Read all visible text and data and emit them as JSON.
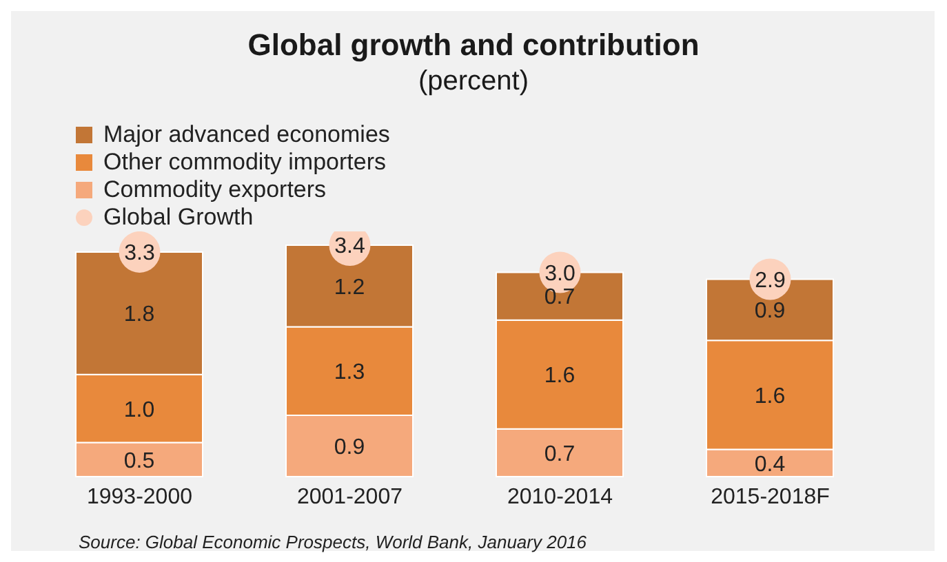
{
  "chart_data": {
    "type": "bar",
    "title": "Global growth and contribution",
    "subtitle": "(percent)",
    "categories": [
      "1993-2000",
      "2001-2007",
      "2010-2014",
      "2015-2018F"
    ],
    "stacked": true,
    "legend": "top left",
    "annotations": [
      "Source: Global Economic Prospects, World Bank, January 2016"
    ],
    "series": [
      {
        "name": "Commodity exporters",
        "color": "#f5a97c",
        "values": [
          0.5,
          0.9,
          0.7,
          0.4
        ],
        "value_labels": [
          "0.5",
          "0.9",
          "0.7",
          "0.4"
        ]
      },
      {
        "name": "Other commodity importers",
        "color": "#e8893c",
        "values": [
          1.0,
          1.3,
          1.6,
          1.6
        ],
        "value_labels": [
          "1.0",
          "1.3",
          "1.6",
          "1.6"
        ]
      },
      {
        "name": "Major advanced economies",
        "color": "#c27636",
        "values": [
          1.8,
          1.2,
          0.7,
          0.9
        ],
        "value_labels": [
          "1.8",
          "1.2",
          "0.7",
          "0.9"
        ]
      },
      {
        "name": "Global Growth",
        "type": "scatter",
        "color": "#fcd2bd",
        "x": [
          "1993-2000",
          "2001-2007",
          "2010-2014",
          "2015-2018F"
        ],
        "values": [
          3.3,
          3.4,
          3.0,
          2.9
        ],
        "value_labels": [
          "3.3",
          "3.4",
          "3.0",
          "2.9"
        ]
      }
    ]
  }
}
